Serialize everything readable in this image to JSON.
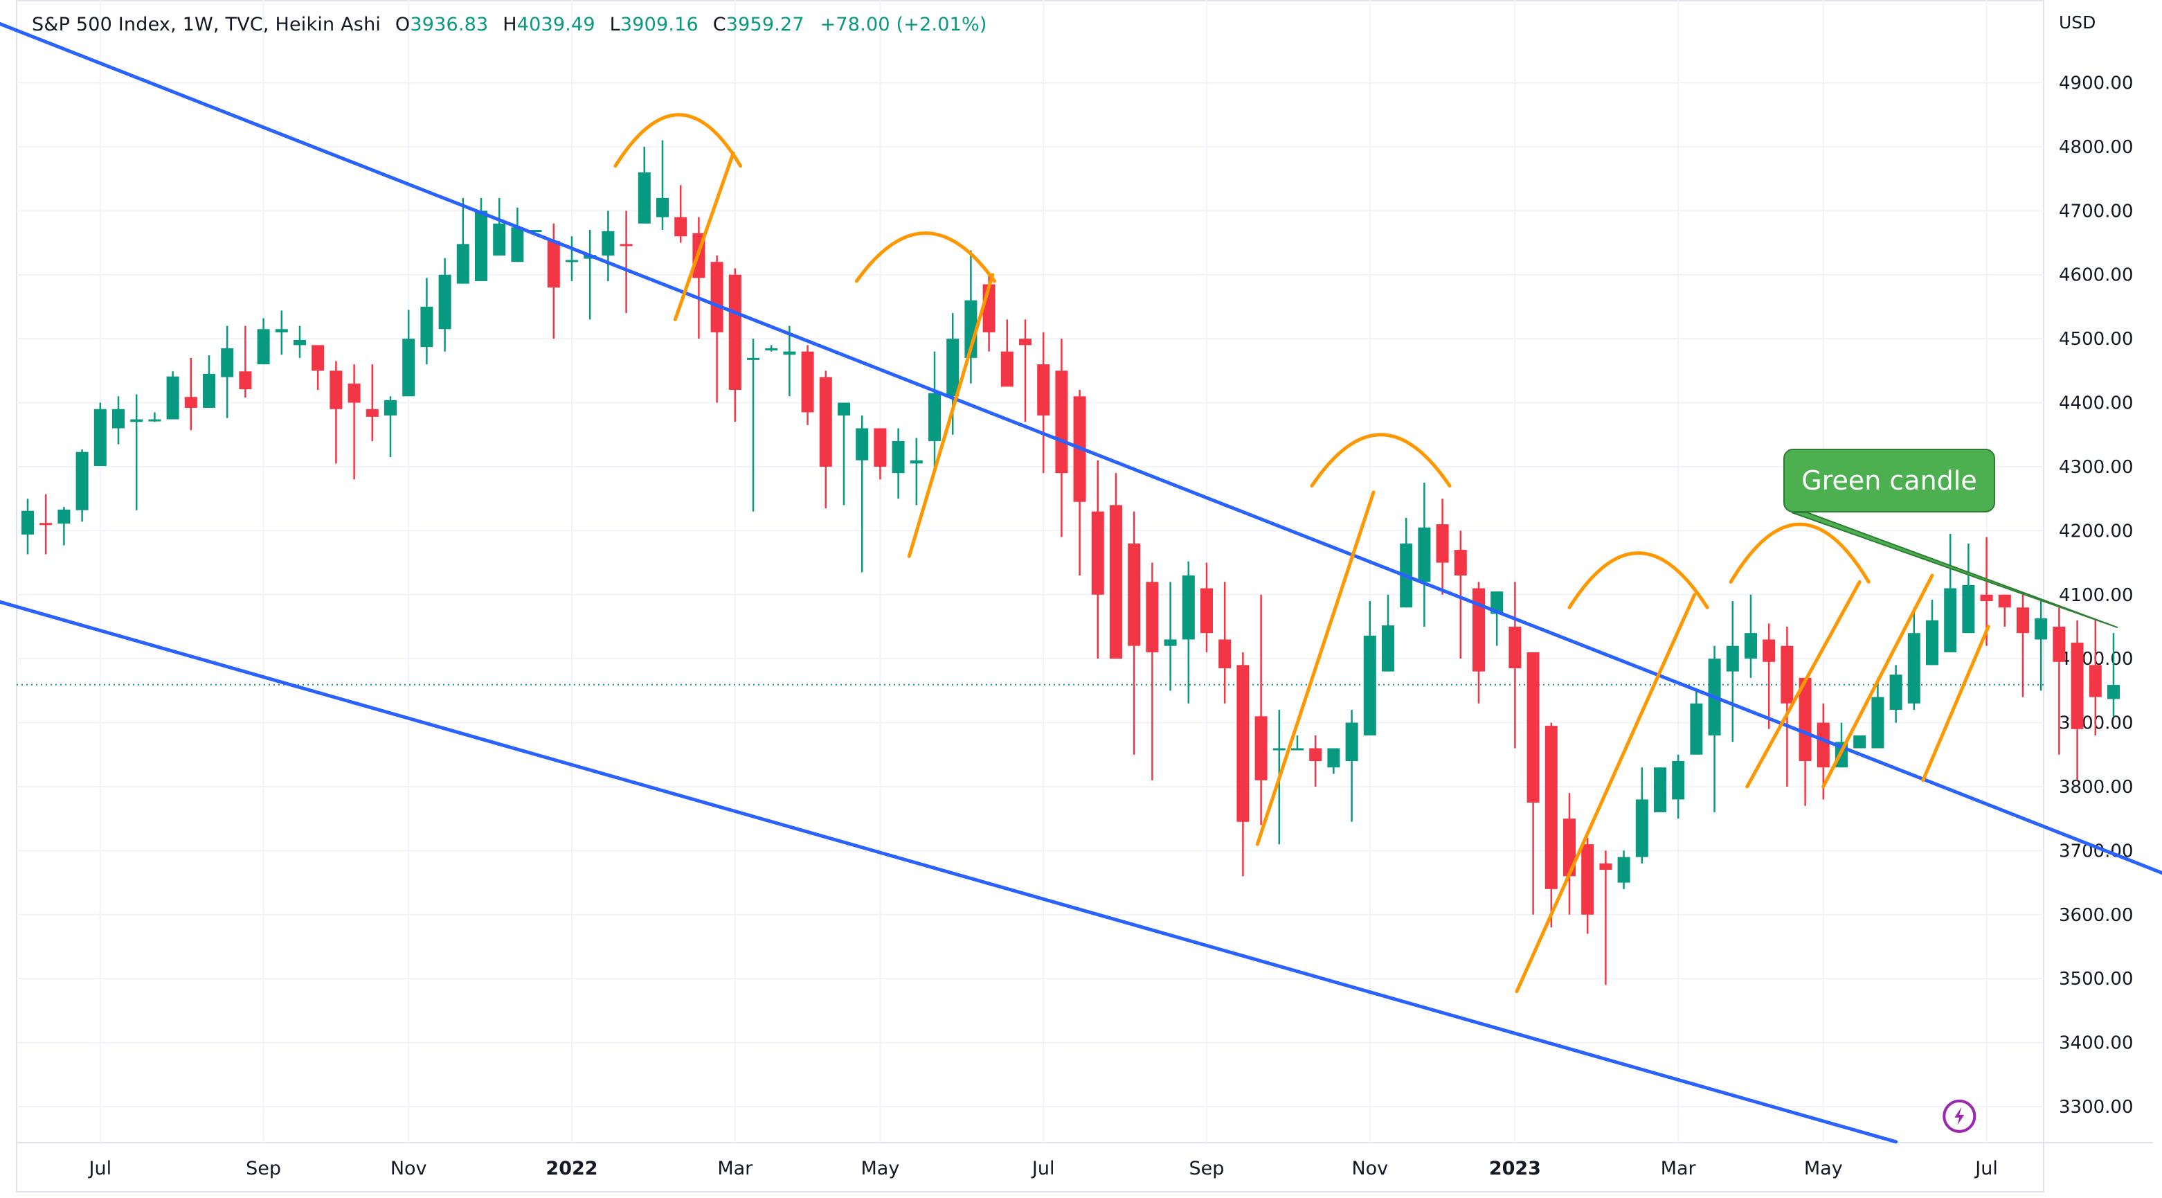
{
  "header": {
    "symbol": "S&P 500 Index, 1W, TVC, Heikin Ashi",
    "o_label": "O",
    "o_value": "3936.83",
    "h_label": "H",
    "h_value": "4039.49",
    "l_label": "L",
    "l_value": "3909.16",
    "c_label": "C",
    "c_value": "3959.27",
    "change": "+78.00 (+2.01%)",
    "currency": "USD"
  },
  "annotation": {
    "callout_text": "Green candle"
  },
  "colors": {
    "up": "#089981",
    "down": "#f23645",
    "trendline": "#2962ff",
    "pattern": "#ff9800",
    "grid": "#f0f3fa",
    "price_line": "#089981",
    "callout_bg": "#4caf50"
  },
  "chart_data": {
    "type": "candlestick",
    "grid": true,
    "ylim": [
      3240,
      4990
    ],
    "yaxis_position": "right",
    "y_ticks": [
      "4900.00",
      "4800.00",
      "4700.00",
      "4600.00",
      "4500.00",
      "4400.00",
      "4300.00",
      "4200.00",
      "4100.00",
      "4000.00",
      "3900.00",
      "3800.00",
      "3700.00",
      "3600.00",
      "3500.00",
      "3400.00",
      "3300.00"
    ],
    "x_ticks": [
      {
        "label": "Jul",
        "week": 4,
        "bold": false
      },
      {
        "label": "Sep",
        "week": 13,
        "bold": false
      },
      {
        "label": "Nov",
        "week": 21,
        "bold": false
      },
      {
        "label": "2022",
        "week": 30,
        "bold": true
      },
      {
        "label": "Mar",
        "week": 39,
        "bold": false
      },
      {
        "label": "May",
        "week": 47,
        "bold": false
      },
      {
        "label": "Jul",
        "week": 56,
        "bold": false
      },
      {
        "label": "Sep",
        "week": 65,
        "bold": false
      },
      {
        "label": "Nov",
        "week": 74,
        "bold": false
      },
      {
        "label": "2023",
        "week": 82,
        "bold": true
      },
      {
        "label": "Mar",
        "week": 91,
        "bold": false
      },
      {
        "label": "May",
        "week": 99,
        "bold": false
      },
      {
        "label": "Jul",
        "week": 108,
        "bold": false
      }
    ],
    "last_price": 3959.27,
    "candles": [
      [
        4194,
        4231,
        4250,
        4163
      ],
      [
        4212,
        4210,
        4257,
        4163
      ],
      [
        4211,
        4233,
        4237,
        4177
      ],
      [
        4232,
        4323,
        4327,
        4214
      ],
      [
        4301,
        4390,
        4400,
        4301
      ],
      [
        4360,
        4390,
        4410,
        4335
      ],
      [
        4370,
        4374,
        4413,
        4232
      ],
      [
        4373,
        4374,
        4385,
        4370
      ],
      [
        4374,
        4441,
        4449,
        4374
      ],
      [
        4409,
        4392,
        4470,
        4357
      ],
      [
        4392,
        4445,
        4474,
        4392
      ],
      [
        4440,
        4485,
        4520,
        4376
      ],
      [
        4449,
        4421,
        4520,
        4408
      ],
      [
        4460,
        4515,
        4532,
        4460
      ],
      [
        4510,
        4515,
        4544,
        4475
      ],
      [
        4490,
        4498,
        4520,
        4470
      ],
      [
        4490,
        4450,
        4485,
        4420
      ],
      [
        4450,
        4390,
        4465,
        4305
      ],
      [
        4430,
        4400,
        4460,
        4280
      ],
      [
        4390,
        4378,
        4460,
        4340
      ],
      [
        4380,
        4404,
        4410,
        4315
      ],
      [
        4410,
        4500,
        4545,
        4411
      ],
      [
        4487,
        4550,
        4595,
        4460
      ],
      [
        4515,
        4600,
        4626,
        4480
      ],
      [
        4586,
        4648,
        4720,
        4586
      ],
      [
        4590,
        4700,
        4720,
        4590
      ],
      [
        4630,
        4680,
        4720,
        4630
      ],
      [
        4620,
        4674,
        4705,
        4620
      ],
      [
        4668,
        4670,
        4670,
        4670
      ],
      [
        4653,
        4580,
        4680,
        4500
      ],
      [
        4620,
        4623,
        4660,
        4590
      ],
      [
        4625,
        4631,
        4670,
        4530
      ],
      [
        4630,
        4668,
        4700,
        4590
      ],
      [
        4648,
        4647,
        4700,
        4540
      ],
      [
        4680,
        4760,
        4800,
        4680
      ],
      [
        4690,
        4720,
        4810,
        4670
      ],
      [
        4690,
        4660,
        4740,
        4650
      ],
      [
        4665,
        4595,
        4690,
        4500
      ],
      [
        4620,
        4510,
        4630,
        4400
      ],
      [
        4600,
        4420,
        4610,
        4370
      ],
      [
        4470,
        4470,
        4500,
        4230
      ],
      [
        4485,
        4485,
        4490,
        4480
      ],
      [
        4475,
        4480,
        4520,
        4410
      ],
      [
        4480,
        4385,
        4490,
        4365
      ],
      [
        4440,
        4300,
        4450,
        4235
      ],
      [
        4380,
        4400,
        4400,
        4240
      ],
      [
        4310,
        4360,
        4380,
        4135
      ],
      [
        4360,
        4300,
        4350,
        4280
      ],
      [
        4290,
        4340,
        4360,
        4250
      ],
      [
        4305,
        4310,
        4345,
        4240
      ],
      [
        4340,
        4415,
        4480,
        4290
      ],
      [
        4410,
        4500,
        4540,
        4350
      ],
      [
        4470,
        4560,
        4638,
        4430
      ],
      [
        4585,
        4510,
        4600,
        4480
      ],
      [
        4480,
        4425,
        4530,
        4430
      ],
      [
        4500,
        4490,
        4530,
        4370
      ],
      [
        4460,
        4380,
        4510,
        4290
      ],
      [
        4450,
        4290,
        4500,
        4190
      ],
      [
        4410,
        4245,
        4420,
        4130
      ],
      [
        4230,
        4100,
        4310,
        4000
      ],
      [
        4240,
        4000,
        4290,
        4010
      ],
      [
        4180,
        4020,
        4230,
        3850
      ],
      [
        4120,
        4010,
        4150,
        3810
      ],
      [
        4020,
        4030,
        4120,
        3950
      ],
      [
        4030,
        4130,
        4152,
        3930
      ],
      [
        4110,
        4040,
        4150,
        4010
      ],
      [
        4030,
        3985,
        4120,
        3930
      ],
      [
        3990,
        3745,
        4010,
        3660
      ],
      [
        3910,
        3810,
        4100,
        3740
      ],
      [
        3860,
        3860,
        3920,
        3710
      ],
      [
        3860,
        3860,
        3880,
        3860
      ],
      [
        3860,
        3840,
        3880,
        3800
      ],
      [
        3830,
        3860,
        3860,
        3820
      ],
      [
        3840,
        3900,
        3920,
        3745
      ],
      [
        3880,
        4036,
        4090,
        3880
      ],
      [
        3980,
        4052,
        4100,
        3980
      ],
      [
        4080,
        4180,
        4220,
        4080
      ],
      [
        4120,
        4205,
        4275,
        4050
      ],
      [
        4210,
        4150,
        4250,
        4100
      ],
      [
        4170,
        4130,
        4200,
        4000
      ],
      [
        4110,
        3980,
        4120,
        3930
      ],
      [
        4070,
        4105,
        4100,
        4020
      ],
      [
        4050,
        3985,
        4120,
        3860
      ],
      [
        4010,
        3775,
        4010,
        3600
      ],
      [
        3895,
        3640,
        3900,
        3580
      ],
      [
        3750,
        3660,
        3790,
        3600
      ],
      [
        3710,
        3600,
        3720,
        3570
      ],
      [
        3680,
        3670,
        3700,
        3490
      ],
      [
        3650,
        3690,
        3700,
        3640
      ],
      [
        3690,
        3780,
        3830,
        3680
      ],
      [
        3760,
        3830,
        3830,
        3760
      ],
      [
        3780,
        3840,
        3850,
        3750
      ],
      [
        3850,
        3930,
        3950,
        3860
      ],
      [
        3880,
        4000,
        4020,
        3760
      ],
      [
        3980,
        4020,
        4090,
        3870
      ],
      [
        4000,
        4040,
        4100,
        3970
      ],
      [
        4030,
        3995,
        4055,
        3890
      ],
      [
        4020,
        3930,
        4050,
        3800
      ],
      [
        3970,
        3840,
        3970,
        3770
      ],
      [
        3900,
        3830,
        3930,
        3780
      ],
      [
        3830,
        3870,
        3900,
        3840
      ],
      [
        3860,
        3880,
        3880,
        3880
      ],
      [
        3860,
        3940,
        3970,
        3865
      ],
      [
        3920,
        3975,
        3990,
        3900
      ],
      [
        3930,
        4040,
        4080,
        3920
      ],
      [
        3990,
        4060,
        4092,
        3990
      ],
      [
        4010,
        4110,
        4195,
        4010
      ],
      [
        4040,
        4115,
        4180,
        4040
      ],
      [
        4100,
        4090,
        4190,
        4020
      ],
      [
        4100,
        4080,
        4100,
        4050
      ],
      [
        4080,
        4040,
        4100,
        3940
      ],
      [
        4030,
        4063,
        4090,
        3950
      ],
      [
        4050,
        3995,
        4080,
        3850
      ],
      [
        4025,
        3890,
        4060,
        3810
      ],
      [
        3990,
        3940,
        4060,
        3880
      ],
      [
        3937,
        3959,
        4040,
        3909
      ]
    ],
    "trendlines": [
      {
        "points": [
          [
            -1.7,
            4994
          ],
          [
            121.1,
            3627
          ]
        ]
      },
      {
        "points": [
          [
            -1.7,
            4090
          ],
          [
            103.0,
            3245
          ]
        ]
      }
    ],
    "arcs": [
      [
        [
          32.4,
          4770
        ],
        [
          35.9,
          4850
        ],
        [
          39.3,
          4770
        ]
      ],
      [
        [
          45.7,
          4590
        ],
        [
          49.5,
          4665
        ],
        [
          53.3,
          4590
        ]
      ],
      [
        [
          70.8,
          4270
        ],
        [
          74.6,
          4350
        ],
        [
          78.4,
          4270
        ]
      ],
      [
        [
          85.0,
          4080
        ],
        [
          88.8,
          4165
        ],
        [
          92.6,
          4080
        ]
      ],
      [
        [
          93.9,
          4120
        ],
        [
          97.7,
          4210
        ],
        [
          101.5,
          4120
        ]
      ]
    ],
    "rising_lines": [
      [
        [
          35.7,
          4530
        ],
        [
          38.9,
          4790
        ]
      ],
      [
        [
          48.6,
          4160
        ],
        [
          53.2,
          4600
        ]
      ],
      [
        [
          67.8,
          3710
        ],
        [
          74.2,
          4260
        ]
      ],
      [
        [
          82.1,
          3480
        ],
        [
          91.9,
          4100
        ]
      ],
      [
        [
          94.8,
          3800
        ],
        [
          101.0,
          4120
        ]
      ],
      [
        [
          99.0,
          3800
        ],
        [
          105.0,
          4130
        ]
      ],
      [
        [
          104.5,
          3810
        ],
        [
          108.1,
          4050
        ]
      ]
    ],
    "price_line": 3959.27,
    "lightning_marker": {
      "week": 106.5,
      "value": 3285
    }
  }
}
